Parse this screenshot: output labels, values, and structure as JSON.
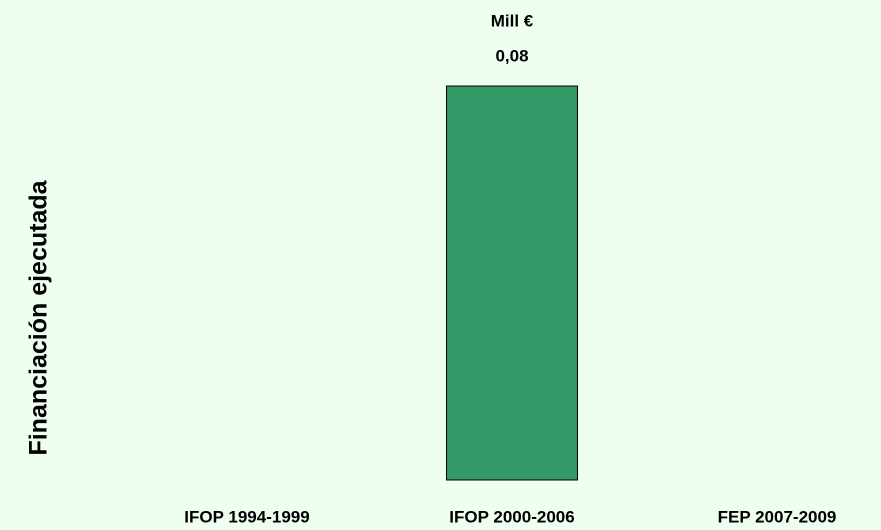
{
  "chart_data": {
    "type": "bar",
    "unit_label": "Mill €",
    "y_label": "Financiación ejecutada",
    "categories": [
      "IFOP 1994-1999",
      "IFOP 2000-2006",
      "FEP 2007-2009"
    ],
    "values": [
      null,
      0.08,
      null
    ],
    "value_labels": [
      null,
      "0,08",
      null
    ],
    "color": "#339966"
  }
}
